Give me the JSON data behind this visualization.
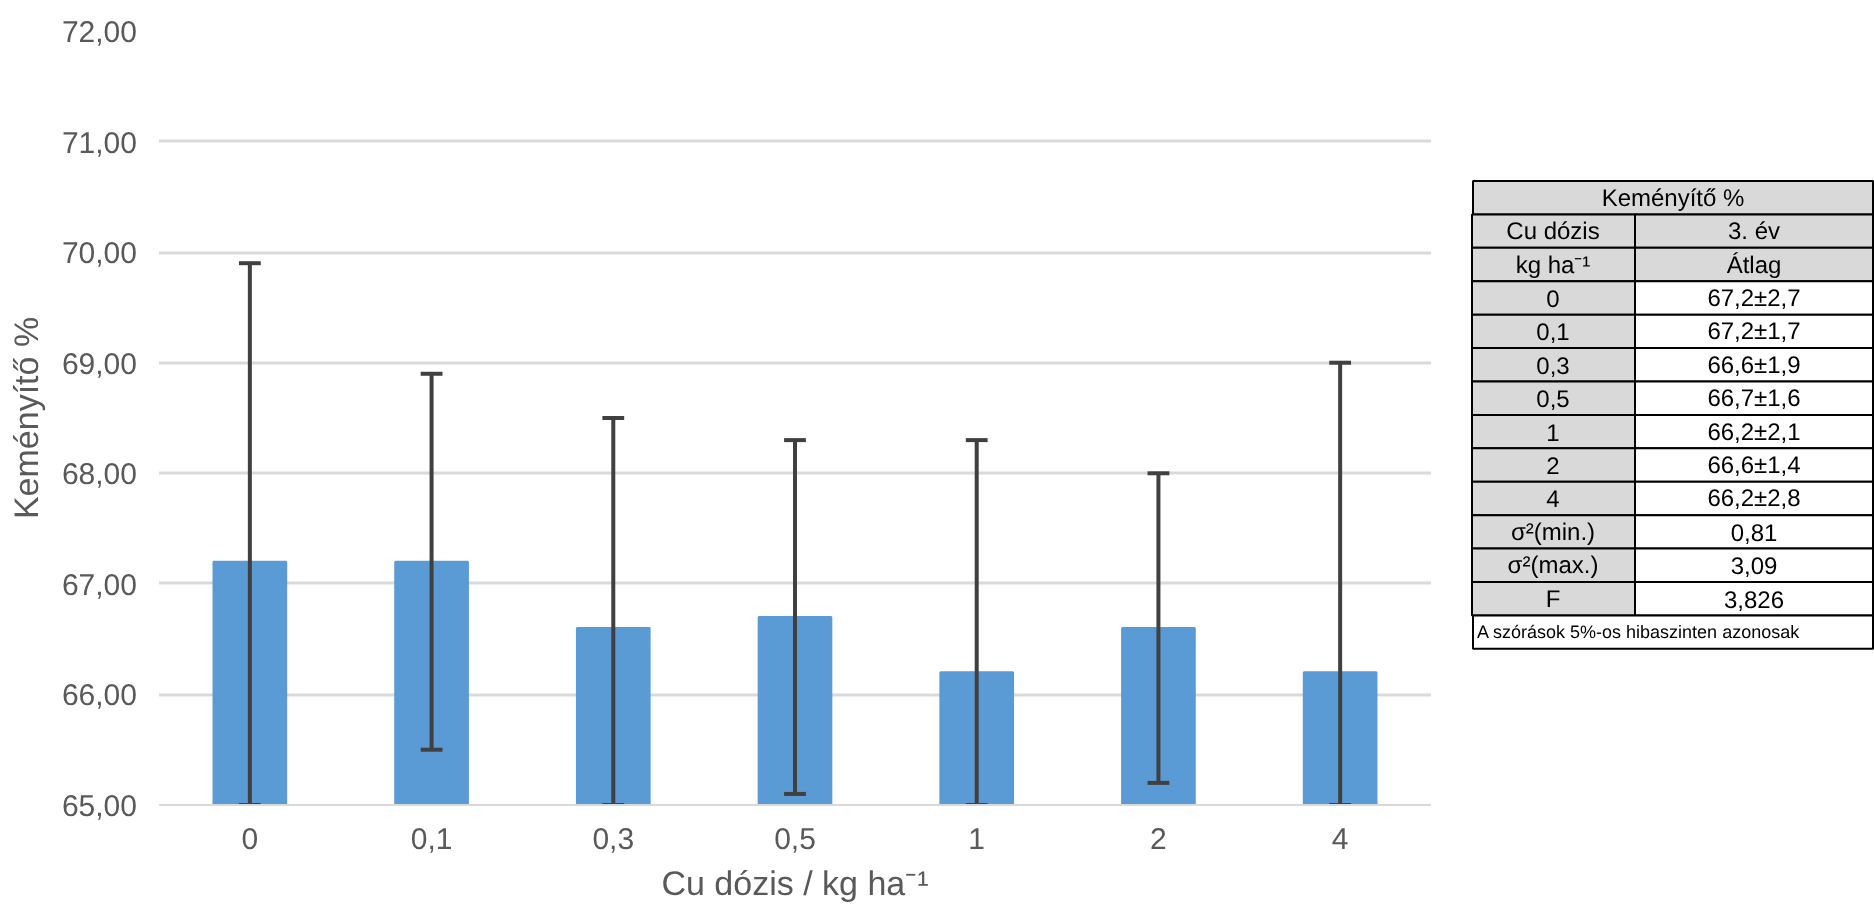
{
  "chart_data": {
    "type": "bar",
    "xlabel": "Cu dózis / kg ha⁻¹",
    "ylabel": "Keményítő %",
    "categories": [
      "0",
      "0,1",
      "0,3",
      "0,5",
      "1",
      "2",
      "4"
    ],
    "values": [
      67.2,
      67.2,
      66.6,
      66.7,
      66.2,
      66.6,
      66.2
    ],
    "errors": [
      [
        65.0,
        69.9
      ],
      1.7,
      [
        65.0,
        68.5
      ],
      1.6,
      [
        65.0,
        68.3
      ],
      1.4,
      [
        65.0,
        69.0
      ]
    ],
    "color": "#5b9bd5",
    "ylim": [
      65,
      72
    ],
    "yticks": [
      {
        "value": 65,
        "label": "65,00"
      },
      {
        "value": 66,
        "label": "66,00"
      },
      {
        "value": 67,
        "label": "67,00"
      },
      {
        "value": 68,
        "label": "68,00"
      },
      {
        "value": 69,
        "label": "69,00"
      },
      {
        "value": 70,
        "label": "70,00"
      },
      {
        "value": 71,
        "label": "71,00"
      },
      {
        "value": 72,
        "label": "72,00"
      }
    ],
    "grid": "y",
    "annotations": [
      "Keményítő %",
      "Cu dózis",
      "3. év",
      "kg ha⁻¹",
      "Átlag",
      "67,2±2,7",
      "67,2±1,7",
      "66,6±1,9",
      "66,7±1,6",
      "66,2±2,1",
      "66,6±1,4",
      "66,2±2,8",
      "σ²(min.)",
      "0,81",
      "σ²(max.)",
      "3,09",
      "F",
      "3,826",
      "A szórások 5%-os hibaszinten azonosak"
    ]
  }
}
